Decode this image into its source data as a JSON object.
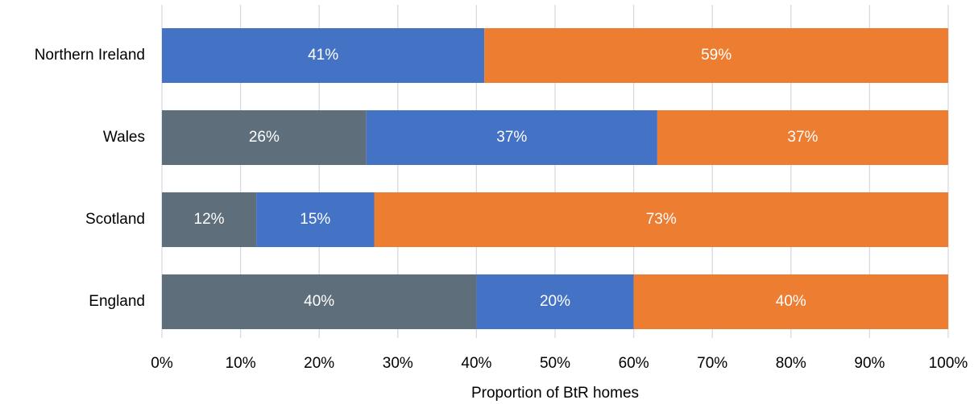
{
  "chart_data": {
    "type": "stacked_barh",
    "xlabel": "Proportion of BtR homes",
    "categories": [
      "Northern Ireland",
      "Wales",
      "Scotland",
      "England"
    ],
    "series": [
      {
        "color": "#5e6e7b",
        "values": [
          0,
          26,
          12,
          40
        ],
        "value_labels": [
          null,
          "26%",
          "12%",
          "40%"
        ]
      },
      {
        "color": "#4472c4",
        "values": [
          41,
          37,
          15,
          20
        ],
        "value_labels": [
          "41%",
          "37%",
          "15%",
          "20%"
        ]
      },
      {
        "color": "#ed7d31",
        "values": [
          59,
          37,
          73,
          40
        ],
        "value_labels": [
          "59%",
          "37%",
          "73%",
          "40%"
        ]
      }
    ],
    "xlim": [
      0,
      100
    ],
    "xticks": [
      {
        "value": 0,
        "label": "0%"
      },
      {
        "value": 10,
        "label": "10%"
      },
      {
        "value": 20,
        "label": "20%"
      },
      {
        "value": 30,
        "label": "30%"
      },
      {
        "value": 40,
        "label": "40%"
      },
      {
        "value": 50,
        "label": "50%"
      },
      {
        "value": 60,
        "label": "60%"
      },
      {
        "value": 70,
        "label": "70%"
      },
      {
        "value": 80,
        "label": "80%"
      },
      {
        "value": 90,
        "label": "90%"
      },
      {
        "value": 100,
        "label": "100%"
      }
    ],
    "grid": true
  }
}
